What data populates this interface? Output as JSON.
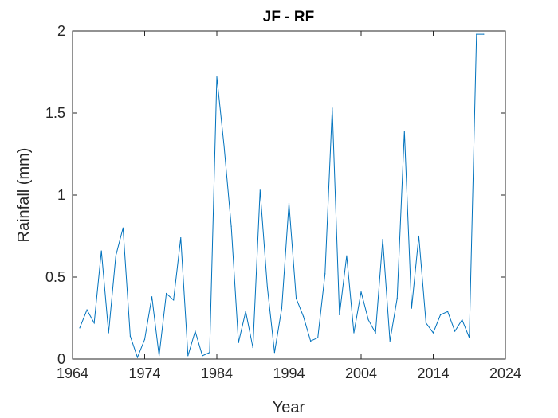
{
  "chart_data": {
    "type": "line",
    "title": "JF - RF",
    "xlabel": "Year",
    "ylabel": "Rainfall (mm)",
    "xlim": [
      1964,
      2024
    ],
    "ylim": [
      0,
      2
    ],
    "xticks": [
      "1964",
      "1974",
      "1984",
      "1994",
      "2004",
      "2014",
      "2024"
    ],
    "yticks": [
      "0",
      "0.5",
      "1",
      "1.5",
      "2"
    ],
    "grid": false,
    "line_color": "#0072BD",
    "series": [
      {
        "x": [
          1965,
          1966,
          1967,
          1968,
          1969,
          1970,
          1971,
          1972,
          1973,
          1974,
          1975,
          1976,
          1977,
          1978,
          1979,
          1980,
          1981,
          1982,
          1983,
          1984,
          1985,
          1986,
          1987,
          1988,
          1989,
          1990,
          1991,
          1992,
          1993,
          1994,
          1995,
          1996,
          1997,
          1998,
          1999,
          2000,
          2001,
          2002,
          2003,
          2004,
          2005,
          2006,
          2007,
          2008,
          2009,
          2010,
          2011,
          2012,
          2013,
          2014,
          2015,
          2016,
          2017,
          2018,
          2019,
          2020,
          2021
        ],
        "values": [
          0.19,
          0.3,
          0.22,
          0.66,
          0.16,
          0.63,
          0.8,
          0.14,
          0.01,
          0.12,
          0.38,
          0.02,
          0.4,
          0.36,
          0.74,
          0.02,
          0.17,
          0.02,
          0.04,
          1.72,
          1.3,
          0.81,
          0.1,
          0.29,
          0.07,
          1.03,
          0.44,
          0.04,
          0.31,
          0.95,
          0.37,
          0.26,
          0.11,
          0.13,
          0.52,
          1.53,
          0.27,
          0.63,
          0.16,
          0.41,
          0.24,
          0.16,
          0.73,
          0.11,
          0.37,
          1.39,
          0.31,
          0.75,
          0.22,
          0.16,
          0.27,
          0.29,
          0.17,
          0.24,
          0.13,
          1.98,
          1.98
        ]
      }
    ]
  }
}
